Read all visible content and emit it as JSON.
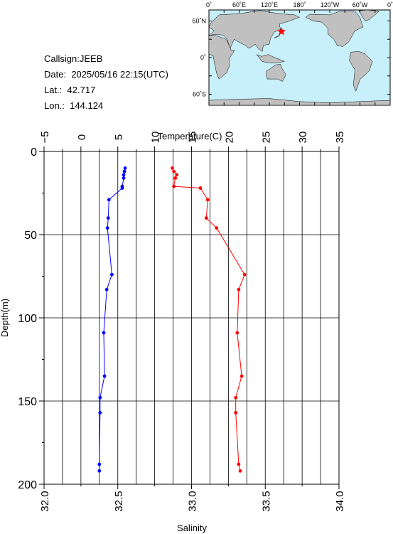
{
  "station": {
    "callsign": "Callsign:JEEB",
    "date_label": "Date:",
    "date_value": "2025/05/16 22:15(UTC)",
    "lat_label": "Lat.:",
    "lat_value": "42.717",
    "lon_label": "Lon.:",
    "lon_value": "144.124"
  },
  "map": {
    "top_ticks": [
      "0˚",
      "60˚E",
      "120˚E",
      "180˚",
      "120˚W",
      "60˚W",
      "0˚"
    ],
    "left_ticks": [
      "60˚N",
      "0˚",
      "60˚S"
    ],
    "ocean_color": "#c8f0fa",
    "land_color": "#c0c0c0",
    "marker_color": "#ff0000",
    "marker_lon": 144.124,
    "marker_lat": 42.717
  },
  "chart_data": {
    "type": "scatter",
    "ylabel": "Depth(m)",
    "xlabel_top": "Temperature(C)",
    "xlabel_bottom": "Salinity",
    "ylim": [
      0,
      200
    ],
    "temp_lim": [
      -5,
      35
    ],
    "sal_lim": [
      32.0,
      34.0
    ],
    "grid": true,
    "y_ticks": [
      "0",
      "50",
      "100",
      "150",
      "200"
    ],
    "temp_ticks": [
      "−5",
      "0",
      "5",
      "10",
      "15",
      "20",
      "25",
      "30",
      "35"
    ],
    "sal_ticks": [
      "32.0",
      "32.5",
      "33.0",
      "33.5",
      "34.0"
    ],
    "series": [
      {
        "color": "#0000ff",
        "axis": "temperature",
        "points": [
          {
            "depth": 10,
            "value": 6.0
          },
          {
            "depth": 12,
            "value": 5.9
          },
          {
            "depth": 14,
            "value": 5.8
          },
          {
            "depth": 16,
            "value": 5.8
          },
          {
            "depth": 21,
            "value": 5.6
          },
          {
            "depth": 22,
            "value": 5.6
          },
          {
            "depth": 29,
            "value": 3.8
          },
          {
            "depth": 40,
            "value": 3.7
          },
          {
            "depth": 46,
            "value": 3.6
          },
          {
            "depth": 74,
            "value": 4.2
          },
          {
            "depth": 83,
            "value": 3.5
          },
          {
            "depth": 109,
            "value": 3.1
          },
          {
            "depth": 135,
            "value": 3.2
          },
          {
            "depth": 148,
            "value": 2.6
          },
          {
            "depth": 157,
            "value": 2.6
          },
          {
            "depth": 188,
            "value": 2.5
          },
          {
            "depth": 192,
            "value": 2.5
          }
        ]
      },
      {
        "color": "#ff0000",
        "axis": "salinity",
        "points": [
          {
            "depth": 10,
            "value": 32.87
          },
          {
            "depth": 12,
            "value": 32.88
          },
          {
            "depth": 14,
            "value": 32.9
          },
          {
            "depth": 16,
            "value": 32.89
          },
          {
            "depth": 21,
            "value": 32.88
          },
          {
            "depth": 22,
            "value": 33.06
          },
          {
            "depth": 29,
            "value": 33.11
          },
          {
            "depth": 40,
            "value": 33.1
          },
          {
            "depth": 46,
            "value": 33.17
          },
          {
            "depth": 74,
            "value": 33.36
          },
          {
            "depth": 83,
            "value": 33.32
          },
          {
            "depth": 109,
            "value": 33.31
          },
          {
            "depth": 135,
            "value": 33.34
          },
          {
            "depth": 148,
            "value": 33.3
          },
          {
            "depth": 157,
            "value": 33.3
          },
          {
            "depth": 188,
            "value": 33.32
          },
          {
            "depth": 192,
            "value": 33.33
          }
        ]
      }
    ]
  }
}
